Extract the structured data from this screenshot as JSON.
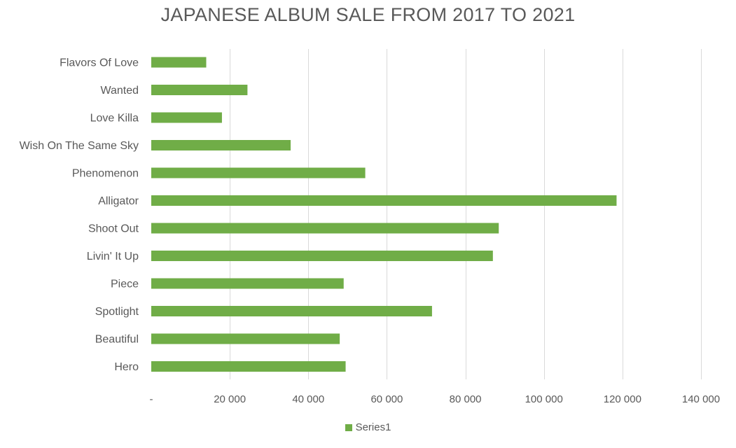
{
  "colors": {
    "bar": "#70ad47"
  },
  "chart_data": {
    "type": "bar",
    "orientation": "horizontal",
    "title": "JAPANESE ALBUM SALE FROM 2017 TO 2021",
    "xlabel": "",
    "ylabel": "",
    "categories": [
      "Hero",
      "Beautiful",
      "Spotlight",
      "Piece",
      "Livin' It Up",
      "Shoot Out",
      "Alligator",
      "Phenomenon",
      "Wish On The Same Sky",
      "Love Killa",
      "Wanted",
      "Flavors Of Love"
    ],
    "series": [
      {
        "name": "Series1",
        "values": [
          49500,
          48000,
          71500,
          49000,
          87000,
          88500,
          118500,
          54500,
          35500,
          18000,
          24500,
          14000
        ]
      }
    ],
    "xlim": [
      0,
      140000
    ],
    "x_ticks": [
      0,
      20000,
      40000,
      60000,
      80000,
      100000,
      120000,
      140000
    ],
    "x_tick_labels": [
      "-",
      "20 000",
      "40 000",
      "60 000",
      "80 000",
      "100 000",
      "120 000",
      "140 000"
    ],
    "grid": "vertical",
    "legend": "bottom"
  }
}
